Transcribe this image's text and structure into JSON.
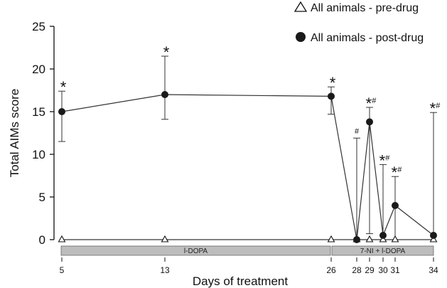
{
  "chart_data": {
    "type": "line",
    "ylabel": "Total AIMs score",
    "xlabel": "Days of treatment",
    "ylim": [
      0,
      25
    ],
    "yticks": [
      0,
      5,
      10,
      15,
      20,
      25
    ],
    "x": [
      5,
      13,
      26,
      28,
      29,
      30,
      31,
      34
    ],
    "legend_position": "top-right",
    "grid": false,
    "series": [
      {
        "name": "All animals - pre-drug",
        "marker": "open-triangle",
        "values": [
          0,
          0,
          0,
          0,
          0,
          0,
          0,
          0
        ]
      },
      {
        "name": "All animals - post-drug",
        "marker": "filled-circle",
        "values": [
          15,
          17,
          16.8,
          0,
          13.8,
          0.5,
          4,
          0.5
        ],
        "error_upper": [
          17.4,
          21.5,
          17.9,
          11.9,
          15.5,
          8.8,
          7.4,
          14.9
        ],
        "error_lower": [
          11.5,
          14.1,
          14.7,
          0,
          0.7,
          0,
          0,
          0
        ]
      }
    ],
    "annotations": [
      {
        "x": 5,
        "text": "*"
      },
      {
        "x": 13,
        "text": "*"
      },
      {
        "x": 26,
        "text": "*"
      },
      {
        "x": 28,
        "text": "#"
      },
      {
        "x": 29,
        "text": "*#"
      },
      {
        "x": 30,
        "text": "*#"
      },
      {
        "x": 31,
        "text": "*#"
      },
      {
        "x": 34,
        "text": "*#"
      }
    ],
    "phases": [
      {
        "label": "l-DOPA",
        "start": 5,
        "end": 26
      },
      {
        "label": "7-NI + l-DOPA",
        "start": 26,
        "end": 34
      }
    ]
  },
  "colors": {
    "line": "#333333",
    "marker_fill": "#1a1a1a",
    "bar_fill": "#bdbdbd",
    "bar_stroke": "#666666"
  }
}
